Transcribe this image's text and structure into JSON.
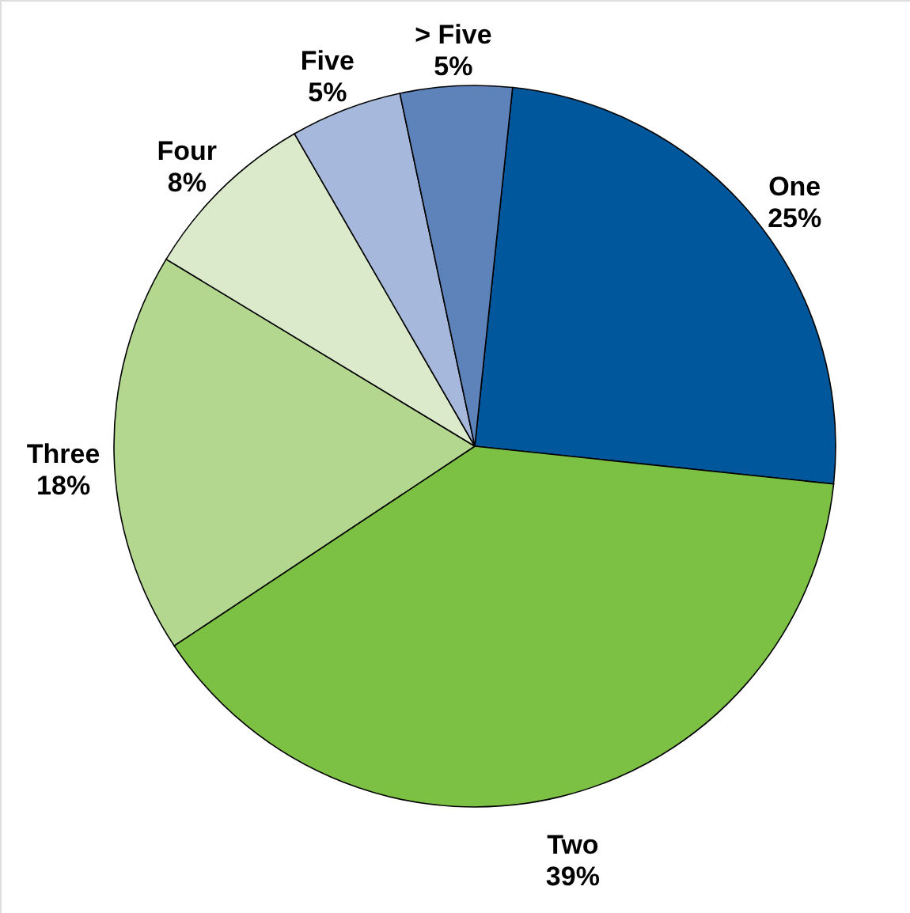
{
  "chart_data": {
    "type": "pie",
    "categories": [
      "One",
      "Two",
      "Three",
      "Four",
      "Five",
      "> Five"
    ],
    "values": [
      25,
      39,
      18,
      8,
      5,
      5
    ],
    "value_labels": [
      "25%",
      "39%",
      "18%",
      "8%",
      "5%",
      "5%"
    ],
    "colors": [
      "#00579b",
      "#7cc144",
      "#b3d78f",
      "#dbeacb",
      "#a6b9dc",
      "#5e83bb"
    ]
  }
}
